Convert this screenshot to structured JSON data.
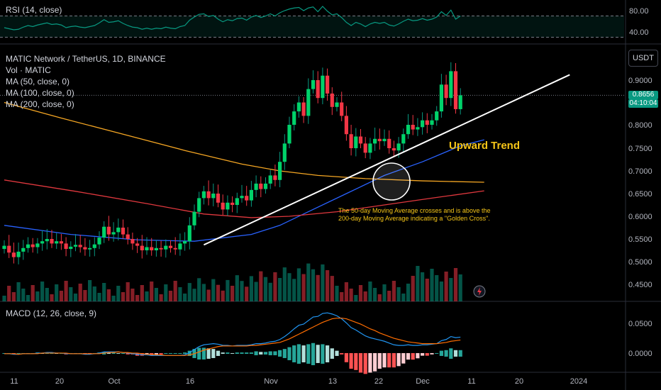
{
  "indicators": {
    "rsi_label": "RSI (14, close)",
    "symbol_label": "MATIC Network / TetherUS, 1D, BINANCE",
    "vol_label": "Vol · MATIC",
    "ma50_label": "MA (50, close, 0)",
    "ma100_label": "MA (100, close, 0)",
    "ma200_label": "MA (200, close, 0)",
    "macd_label": "MACD (12, 26, close, 9)"
  },
  "price_axis": {
    "currency": "USDT",
    "current_price": "0.8656",
    "countdown": "04:10:04",
    "ticks": [
      "0.9000",
      "0.8000",
      "0.7500",
      "0.7000",
      "0.6500",
      "0.6000",
      "0.5500",
      "0.5000",
      "0.4500"
    ]
  },
  "rsi_axis": {
    "ticks": [
      "80.00",
      "40.00"
    ]
  },
  "macd_axis": {
    "ticks": [
      "0.0500",
      "0.0000"
    ]
  },
  "annotations": {
    "trend_label": "Upward Trend",
    "golden_cross_line1": "The 50-day Moving Average crosses and is above the",
    "golden_cross_line2": "200-day Moving Average indicating a \"Golden Cross\"."
  },
  "colors": {
    "up": "#089981",
    "down": "#f23645",
    "ma50": "#2962ff",
    "ma100": "#e0383e",
    "ma200": "#f5a623",
    "rsi": "#089981",
    "macd": "#2196f3",
    "signal": "#ff6d00",
    "annotation": "#f5c518"
  },
  "chart_data": {
    "type": "candlestick",
    "title": "MATIC Network / TetherUS, 1D, BINANCE",
    "x_ticks": [
      "11",
      "20",
      "Oct",
      "16",
      "Nov",
      "13",
      "22",
      "Dec",
      "11",
      "20",
      "2024"
    ],
    "ylim": [
      0.43,
      0.98
    ],
    "candles": [
      {
        "o": 0.528,
        "c": 0.535
      },
      {
        "o": 0.535,
        "c": 0.52
      },
      {
        "o": 0.52,
        "c": 0.51
      },
      {
        "o": 0.51,
        "c": 0.522
      },
      {
        "o": 0.522,
        "c": 0.53
      },
      {
        "o": 0.53,
        "c": 0.538
      },
      {
        "o": 0.538,
        "c": 0.532
      },
      {
        "o": 0.532,
        "c": 0.54
      },
      {
        "o": 0.54,
        "c": 0.545
      },
      {
        "o": 0.545,
        "c": 0.55
      },
      {
        "o": 0.55,
        "c": 0.54
      },
      {
        "o": 0.54,
        "c": 0.545
      },
      {
        "o": 0.545,
        "c": 0.54
      },
      {
        "o": 0.54,
        "c": 0.528
      },
      {
        "o": 0.528,
        "c": 0.533
      },
      {
        "o": 0.533,
        "c": 0.537
      },
      {
        "o": 0.537,
        "c": 0.532
      },
      {
        "o": 0.532,
        "c": 0.527
      },
      {
        "o": 0.527,
        "c": 0.53
      },
      {
        "o": 0.53,
        "c": 0.538
      },
      {
        "o": 0.538,
        "c": 0.553
      },
      {
        "o": 0.553,
        "c": 0.577
      },
      {
        "o": 0.577,
        "c": 0.56
      },
      {
        "o": 0.56,
        "c": 0.565
      },
      {
        "o": 0.565,
        "c": 0.575
      },
      {
        "o": 0.575,
        "c": 0.56
      },
      {
        "o": 0.56,
        "c": 0.55
      },
      {
        "o": 0.55,
        "c": 0.54
      },
      {
        "o": 0.54,
        "c": 0.535
      },
      {
        "o": 0.535,
        "c": 0.525
      },
      {
        "o": 0.525,
        "c": 0.532
      },
      {
        "o": 0.532,
        "c": 0.525
      },
      {
        "o": 0.525,
        "c": 0.53
      },
      {
        "o": 0.53,
        "c": 0.527
      },
      {
        "o": 0.527,
        "c": 0.535
      },
      {
        "o": 0.535,
        "c": 0.53
      },
      {
        "o": 0.53,
        "c": 0.527
      },
      {
        "o": 0.527,
        "c": 0.54
      },
      {
        "o": 0.54,
        "c": 0.545
      },
      {
        "o": 0.545,
        "c": 0.58
      },
      {
        "o": 0.58,
        "c": 0.61
      },
      {
        "o": 0.61,
        "c": 0.64
      },
      {
        "o": 0.64,
        "c": 0.655
      },
      {
        "o": 0.655,
        "c": 0.64
      },
      {
        "o": 0.64,
        "c": 0.65
      },
      {
        "o": 0.65,
        "c": 0.63
      },
      {
        "o": 0.63,
        "c": 0.615
      },
      {
        "o": 0.615,
        "c": 0.63
      },
      {
        "o": 0.63,
        "c": 0.625
      },
      {
        "o": 0.625,
        "c": 0.64
      },
      {
        "o": 0.64,
        "c": 0.645
      },
      {
        "o": 0.645,
        "c": 0.635
      },
      {
        "o": 0.635,
        "c": 0.658
      },
      {
        "o": 0.658,
        "c": 0.672
      },
      {
        "o": 0.672,
        "c": 0.66
      },
      {
        "o": 0.66,
        "c": 0.672
      },
      {
        "o": 0.672,
        "c": 0.69
      },
      {
        "o": 0.69,
        "c": 0.68
      },
      {
        "o": 0.68,
        "c": 0.72
      },
      {
        "o": 0.72,
        "c": 0.76
      },
      {
        "o": 0.76,
        "c": 0.8
      },
      {
        "o": 0.8,
        "c": 0.83
      },
      {
        "o": 0.83,
        "c": 0.85
      },
      {
        "o": 0.85,
        "c": 0.82
      },
      {
        "o": 0.82,
        "c": 0.88
      },
      {
        "o": 0.88,
        "c": 0.9
      },
      {
        "o": 0.9,
        "c": 0.86
      },
      {
        "o": 0.86,
        "c": 0.91
      },
      {
        "o": 0.91,
        "c": 0.87
      },
      {
        "o": 0.87,
        "c": 0.84
      },
      {
        "o": 0.84,
        "c": 0.85
      },
      {
        "o": 0.85,
        "c": 0.82
      },
      {
        "o": 0.82,
        "c": 0.78
      },
      {
        "o": 0.78,
        "c": 0.75
      },
      {
        "o": 0.75,
        "c": 0.775
      },
      {
        "o": 0.775,
        "c": 0.76
      },
      {
        "o": 0.76,
        "c": 0.74
      },
      {
        "o": 0.74,
        "c": 0.76
      },
      {
        "o": 0.76,
        "c": 0.77
      },
      {
        "o": 0.77,
        "c": 0.765
      },
      {
        "o": 0.765,
        "c": 0.77
      },
      {
        "o": 0.77,
        "c": 0.75
      },
      {
        "o": 0.75,
        "c": 0.745
      },
      {
        "o": 0.745,
        "c": 0.76
      },
      {
        "o": 0.76,
        "c": 0.78
      },
      {
        "o": 0.78,
        "c": 0.8
      },
      {
        "o": 0.8,
        "c": 0.79
      },
      {
        "o": 0.79,
        "c": 0.795
      },
      {
        "o": 0.795,
        "c": 0.81
      },
      {
        "o": 0.81,
        "c": 0.8
      },
      {
        "o": 0.8,
        "c": 0.81
      },
      {
        "o": 0.81,
        "c": 0.83
      },
      {
        "o": 0.83,
        "c": 0.89
      },
      {
        "o": 0.89,
        "c": 0.86
      },
      {
        "o": 0.86,
        "c": 0.92
      },
      {
        "o": 0.92,
        "c": 0.835
      },
      {
        "o": 0.835,
        "c": 0.866
      }
    ],
    "ma_series": [
      {
        "label": "MA (50, close, 0)",
        "points": [
          [
            0,
            0.58
          ],
          [
            14,
            0.56
          ],
          [
            28,
            0.548
          ],
          [
            40,
            0.545
          ],
          [
            52,
            0.56
          ],
          [
            58,
            0.58
          ],
          [
            64,
            0.61
          ],
          [
            72,
            0.65
          ],
          [
            80,
            0.69
          ],
          [
            88,
            0.72
          ],
          [
            96,
            0.755
          ],
          [
            101,
            0.768
          ]
        ]
      },
      {
        "label": "MA (100, close, 0)",
        "points": [
          [
            0,
            0.68
          ],
          [
            15,
            0.655
          ],
          [
            30,
            0.628
          ],
          [
            42,
            0.605
          ],
          [
            52,
            0.597
          ],
          [
            60,
            0.6
          ],
          [
            70,
            0.61
          ],
          [
            80,
            0.625
          ],
          [
            90,
            0.64
          ],
          [
            101,
            0.656
          ]
        ]
      },
      {
        "label": "MA (200, close, 0)",
        "points": [
          [
            0,
            0.85
          ],
          [
            12,
            0.815
          ],
          [
            25,
            0.78
          ],
          [
            38,
            0.745
          ],
          [
            50,
            0.715
          ],
          [
            58,
            0.7
          ],
          [
            66,
            0.69
          ],
          [
            76,
            0.683
          ],
          [
            88,
            0.678
          ],
          [
            101,
            0.675
          ]
        ]
      }
    ],
    "trendline": {
      "from": [
        42,
        0.537
      ],
      "to": [
        119,
        0.912
      ]
    },
    "rsi": {
      "ylim": [
        20,
        100
      ],
      "ticks": [
        80,
        40
      ],
      "bands": [
        70,
        30
      ],
      "values": [
        48,
        46,
        44,
        45,
        49,
        52,
        50,
        53,
        55,
        57,
        54,
        55,
        53,
        48,
        50,
        51,
        49,
        48,
        50,
        52,
        57,
        63,
        58,
        59,
        61,
        56,
        52,
        49,
        48,
        45,
        47,
        45,
        47,
        46,
        49,
        47,
        46,
        50,
        52,
        62,
        68,
        73,
        74,
        69,
        71,
        64,
        59,
        63,
        61,
        65,
        66,
        62,
        68,
        71,
        67,
        70,
        74,
        70,
        76,
        80,
        83,
        85,
        86,
        80,
        85,
        87,
        78,
        88,
        79,
        72,
        74,
        67,
        58,
        52,
        58,
        55,
        50,
        55,
        58,
        56,
        58,
        53,
        51,
        55,
        60,
        64,
        61,
        62,
        65,
        62,
        64,
        68,
        78,
        71,
        81,
        64,
        70
      ]
    },
    "macd": {
      "ylim": [
        -0.03,
        0.085
      ],
      "ticks": [
        0.05,
        0.0
      ],
      "macd": [
        -0.001,
        -0.001,
        -0.002,
        -0.002,
        -0.001,
        -0.001,
        -0.001,
        0.0,
        0.0,
        0.001,
        0.001,
        0.0,
        0.0,
        -0.001,
        -0.001,
        -0.001,
        -0.001,
        -0.002,
        -0.002,
        -0.001,
        0.0,
        0.002,
        0.002,
        0.002,
        0.002,
        0.001,
        0.0,
        -0.001,
        -0.002,
        -0.003,
        -0.003,
        -0.004,
        -0.004,
        -0.004,
        -0.004,
        -0.004,
        -0.004,
        -0.004,
        -0.003,
        0.001,
        0.006,
        0.011,
        0.014,
        0.015,
        0.016,
        0.015,
        0.013,
        0.013,
        0.012,
        0.013,
        0.013,
        0.013,
        0.014,
        0.016,
        0.016,
        0.017,
        0.019,
        0.02,
        0.023,
        0.028,
        0.034,
        0.041,
        0.047,
        0.049,
        0.055,
        0.061,
        0.062,
        0.067,
        0.068,
        0.066,
        0.063,
        0.058,
        0.051,
        0.043,
        0.039,
        0.034,
        0.029,
        0.026,
        0.024,
        0.022,
        0.02,
        0.017,
        0.014,
        0.013,
        0.013,
        0.014,
        0.013,
        0.013,
        0.014,
        0.014,
        0.015,
        0.016,
        0.021,
        0.023,
        0.028,
        0.026,
        0.027
      ],
      "signal": [
        -0.001,
        -0.001,
        -0.001,
        -0.002,
        -0.001,
        -0.001,
        -0.001,
        -0.001,
        0.0,
        0.0,
        0.0,
        0.0,
        0.0,
        0.0,
        -0.001,
        -0.001,
        -0.001,
        -0.001,
        -0.001,
        -0.001,
        -0.001,
        0.0,
        0.001,
        0.001,
        0.002,
        0.001,
        0.001,
        0.0,
        0.0,
        -0.001,
        -0.002,
        -0.002,
        -0.003,
        -0.003,
        -0.004,
        -0.004,
        -0.004,
        -0.004,
        -0.004,
        -0.003,
        -0.001,
        0.002,
        0.005,
        0.007,
        0.009,
        0.011,
        0.012,
        0.012,
        0.012,
        0.012,
        0.012,
        0.012,
        0.013,
        0.013,
        0.014,
        0.015,
        0.016,
        0.017,
        0.018,
        0.021,
        0.024,
        0.028,
        0.032,
        0.036,
        0.04,
        0.044,
        0.048,
        0.052,
        0.055,
        0.058,
        0.059,
        0.059,
        0.058,
        0.055,
        0.052,
        0.049,
        0.045,
        0.041,
        0.038,
        0.034,
        0.031,
        0.028,
        0.025,
        0.023,
        0.021,
        0.019,
        0.018,
        0.017,
        0.016,
        0.016,
        0.016,
        0.016,
        0.017,
        0.018,
        0.02,
        0.021,
        0.022
      ]
    }
  }
}
